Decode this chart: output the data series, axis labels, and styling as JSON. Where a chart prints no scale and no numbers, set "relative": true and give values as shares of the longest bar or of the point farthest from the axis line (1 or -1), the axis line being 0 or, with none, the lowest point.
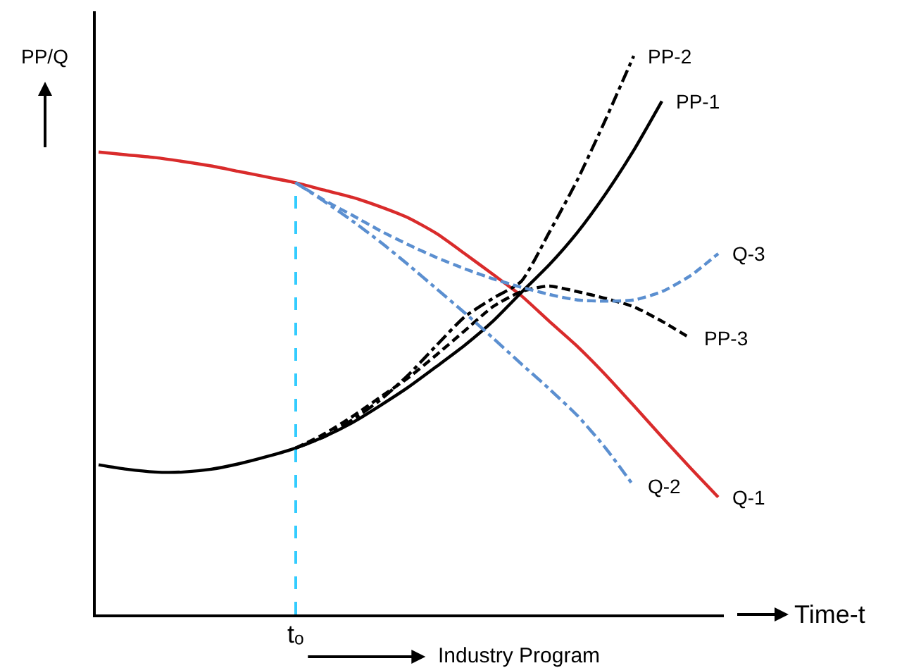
{
  "chart_data": {
    "type": "line",
    "relative": true,
    "ylabel": "PP/Q",
    "xlabel": "Time-t",
    "categories": [
      null,
      null,
      null,
      null,
      null,
      null,
      null,
      null,
      null,
      null,
      null,
      null,
      null,
      null,
      null,
      null,
      null,
      null,
      null,
      null,
      null,
      null,
      null
    ],
    "series": [
      {
        "name": "Q-1",
        "color": "#d92b2b",
        "line_style": "solid",
        "values": [
          0.828,
          0.823,
          0.818,
          0.811,
          0.803,
          0.793,
          0.783,
          0.773,
          0.76,
          0.747,
          0.73,
          0.71,
          0.682,
          0.646,
          0.609,
          0.571,
          0.525,
          0.48,
          0.429,
          0.374,
          0.318,
          0.263,
          0.21
        ]
      },
      {
        "name": "PP-1",
        "color": "#000000",
        "line_style": "solid",
        "values": [
          0.268,
          0.26,
          0.255,
          0.255,
          0.26,
          0.27,
          0.283,
          0.298,
          0.318,
          0.343,
          0.374,
          0.407,
          0.444,
          0.482,
          0.525,
          0.576,
          0.626,
          0.684,
          0.753,
          0.831,
          0.919,
          null,
          null
        ]
      },
      {
        "name": "PP-2",
        "color": "#000000",
        "line_style": "dotted",
        "values": [
          null,
          null,
          null,
          null,
          null,
          null,
          null,
          0.298,
          0.318,
          0.348,
          0.384,
          0.429,
          0.482,
          0.533,
          0.566,
          0.596,
          0.684,
          0.778,
          0.886,
          1.0,
          null,
          null,
          null
        ]
      },
      {
        "name": "PP-3",
        "color": "#000000",
        "line_style": "dashed",
        "values": [
          null,
          null,
          null,
          null,
          null,
          null,
          null,
          0.298,
          0.323,
          0.354,
          0.389,
          0.424,
          0.465,
          0.508,
          0.551,
          0.578,
          0.588,
          0.578,
          0.566,
          0.551,
          0.525,
          0.495,
          null
        ]
      },
      {
        "name": "Q-2",
        "color": "#5b8fd0",
        "line_style": "dotted",
        "values": [
          null,
          null,
          null,
          null,
          null,
          null,
          null,
          0.773,
          0.74,
          0.705,
          0.667,
          0.626,
          0.583,
          0.54,
          0.495,
          0.449,
          0.404,
          0.356,
          0.298,
          0.23,
          null,
          null,
          null
        ]
      },
      {
        "name": "Q-3",
        "color": "#5b8fd0",
        "line_style": "dashed",
        "values": [
          null,
          null,
          null,
          null,
          null,
          null,
          null,
          0.773,
          0.742,
          0.715,
          0.687,
          0.662,
          0.639,
          0.619,
          0.601,
          0.586,
          0.573,
          0.563,
          0.561,
          0.563,
          0.578,
          0.606,
          0.646
        ]
      }
    ],
    "annotations": [
      "tₒ",
      "Industry Program"
    ]
  }
}
